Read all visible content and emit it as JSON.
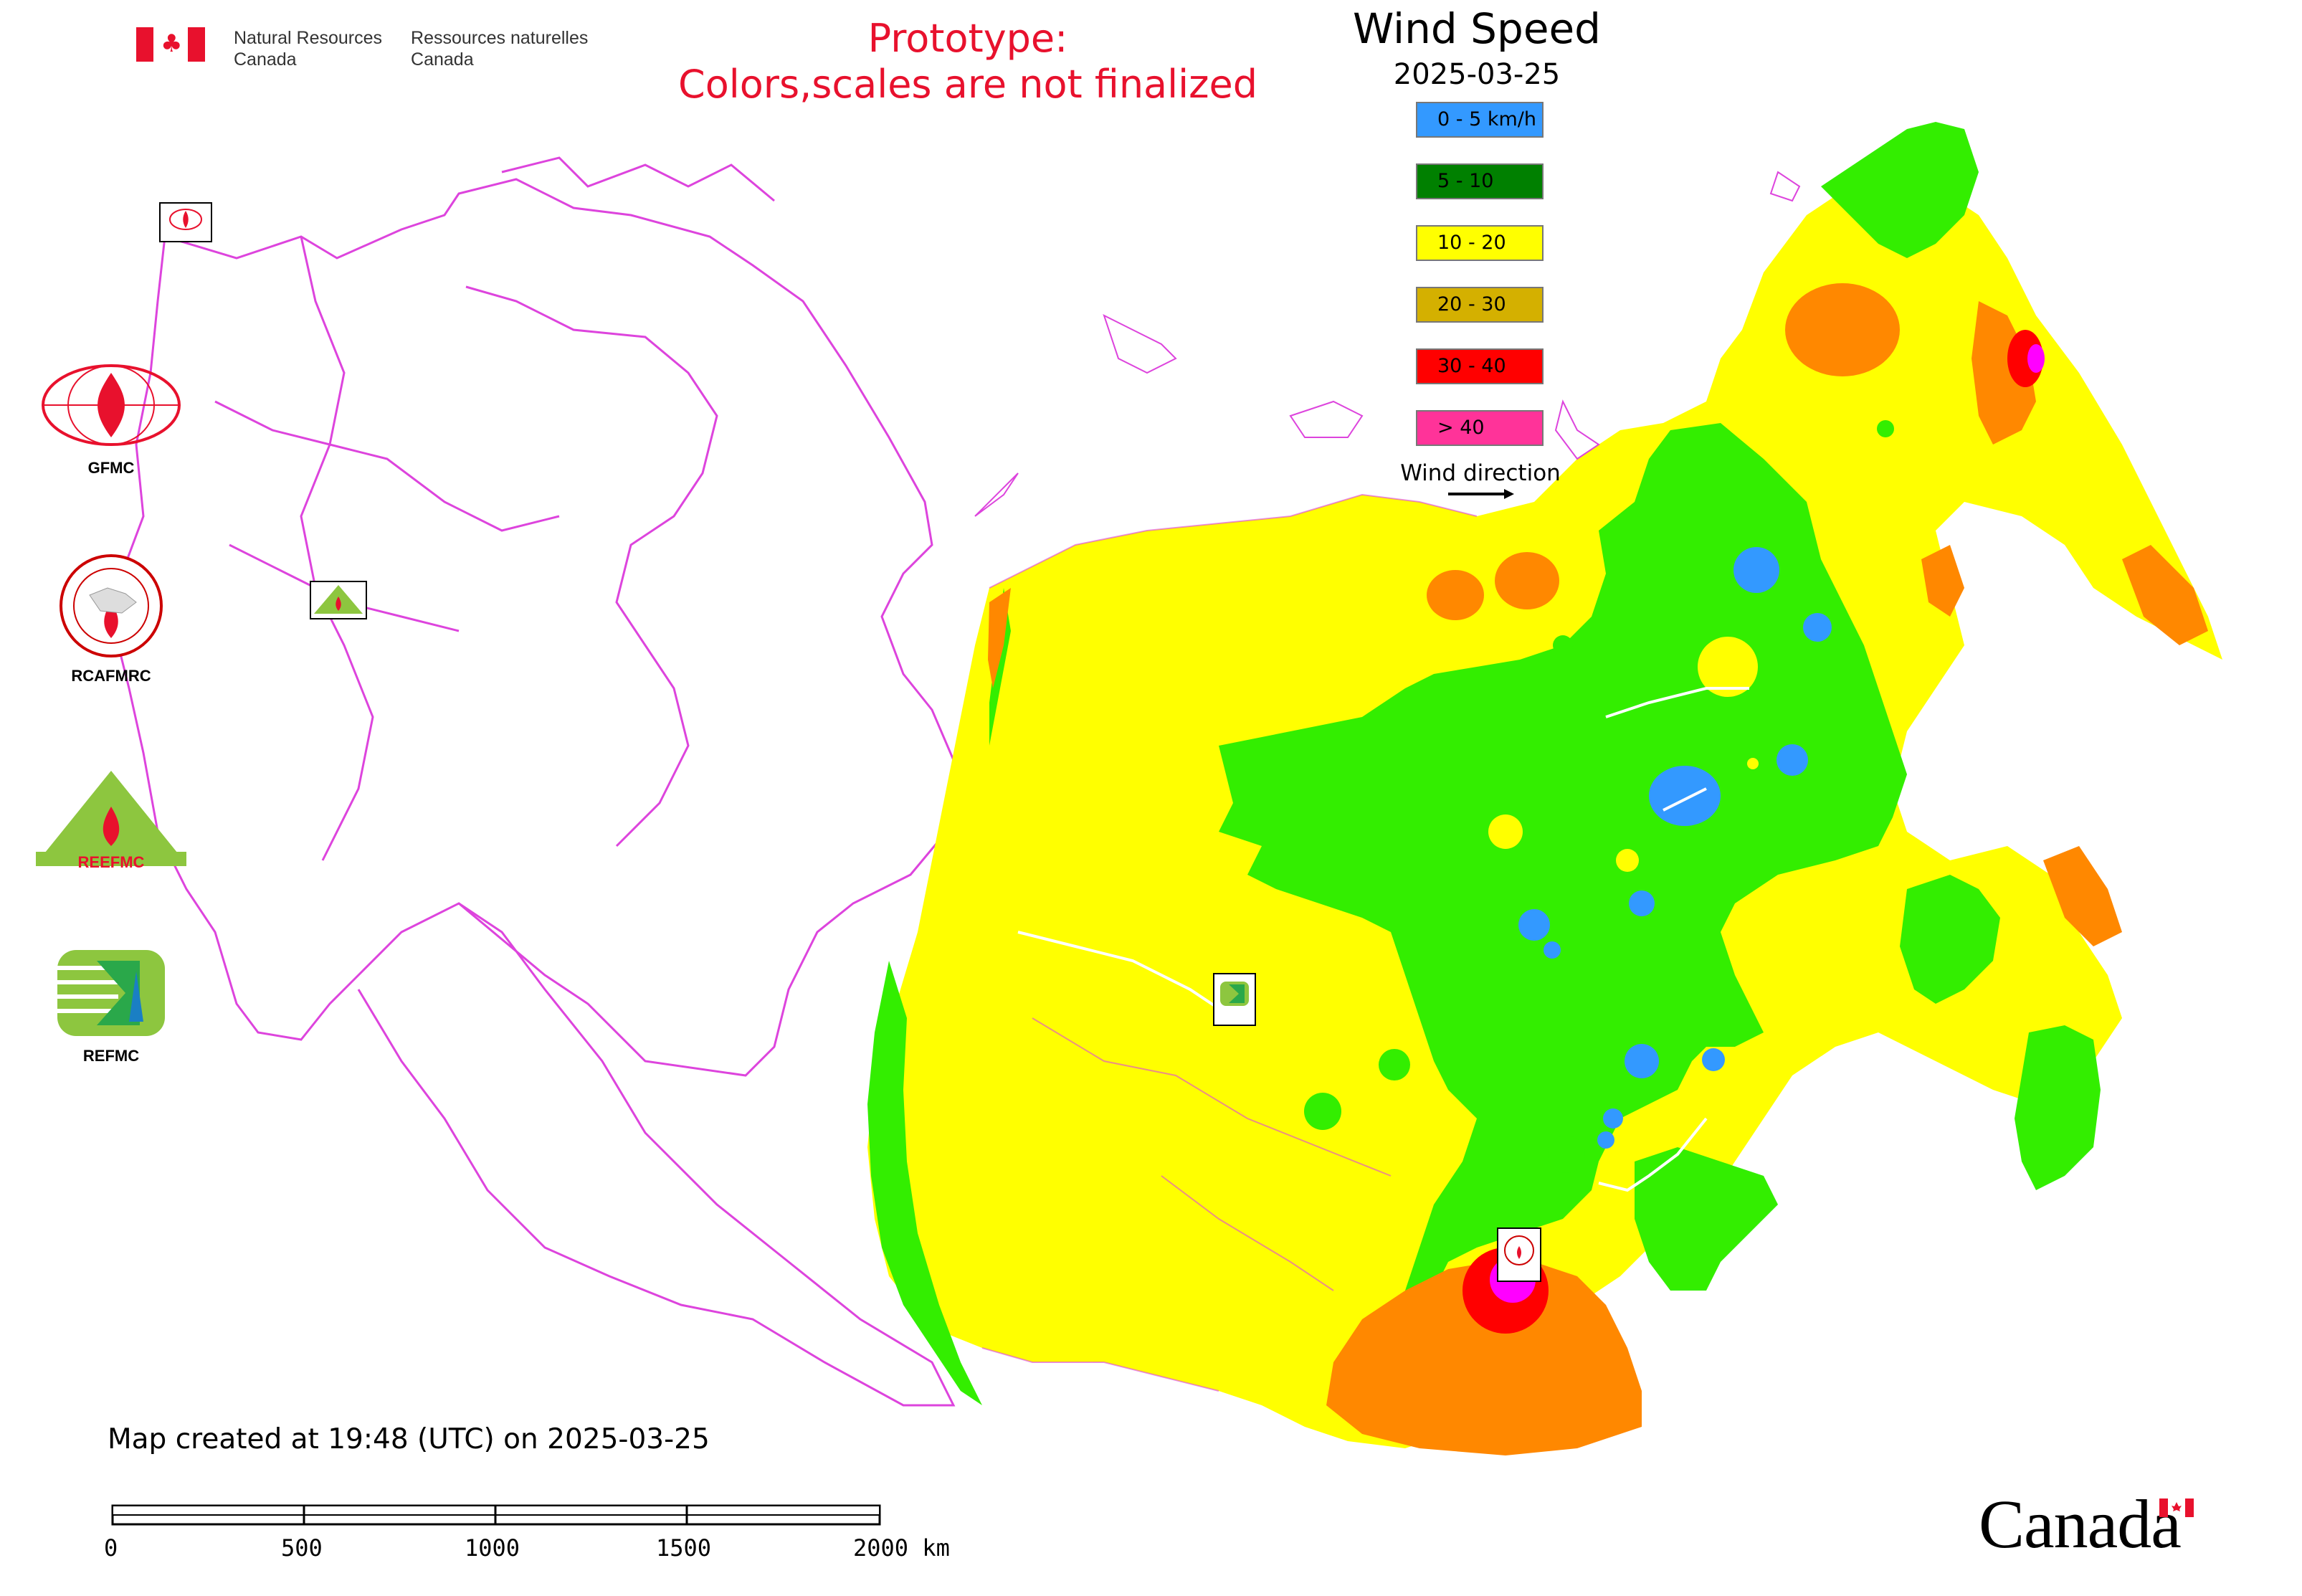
{
  "header": {
    "agency_en": "Natural Resources\nCanada",
    "agency_fr": "Ressources naturelles\nCanada",
    "prototype_line1": "Prototype:",
    "prototype_line2": "Colors,scales are not finalized",
    "title": "Wind Speed",
    "date": "2025-03-25"
  },
  "legend": {
    "items": [
      {
        "label": "0 - 5 km/h",
        "color": "#3399ff"
      },
      {
        "label": "5 - 10",
        "color": "#008000"
      },
      {
        "label": "10 - 20",
        "color": "#ffff00"
      },
      {
        "label": "20 - 30",
        "color": "#d4b000"
      },
      {
        "label": "30 - 40",
        "color": "#ff0000"
      },
      {
        "label": "> 40",
        "color": "#ff3399"
      }
    ],
    "wind_direction_label": "Wind direction"
  },
  "side_logos": [
    {
      "label": "GFMC",
      "icon": "gfmc-logo"
    },
    {
      "label": "RCAFMRC",
      "icon": "rcafmrc-logo"
    },
    {
      "label": "REEFMC",
      "icon": "reefmc-logo"
    },
    {
      "label": "REFMC",
      "icon": "refmc-logo"
    }
  ],
  "map_markers": [
    {
      "label": "GFMC",
      "icon": "gfmc-marker"
    },
    {
      "label": "REEFMC",
      "icon": "reefmc-marker"
    },
    {
      "label": "REFMC",
      "icon": "refmc-marker"
    },
    {
      "label": "RCAFMRC",
      "icon": "rcafmrc-marker"
    }
  ],
  "footer": {
    "created": "Map created at 19:48 (UTC) on 2025-03-25",
    "scale_ticks": [
      "0",
      "500",
      "1000",
      "1500",
      "2000 km"
    ]
  },
  "branding": {
    "wordmark": "Canada"
  },
  "colors": {
    "blue": "#3399ff",
    "bright_green": "#33ee00",
    "green": "#00cc00",
    "yellow": "#ffff00",
    "orange": "#ff8800",
    "red": "#ff0000",
    "magenta": "#ff00ff",
    "border": "#dd44dd"
  }
}
